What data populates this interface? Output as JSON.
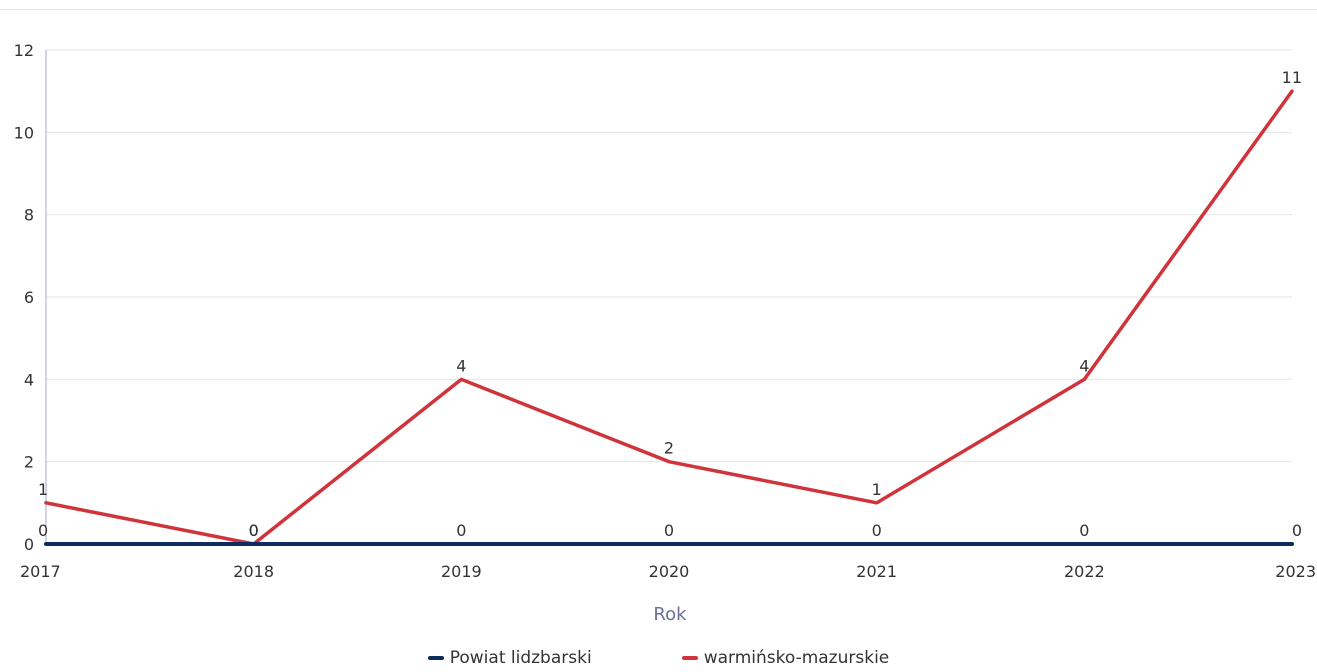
{
  "chart_data": {
    "type": "line",
    "title": "",
    "xlabel": "Rok",
    "ylabel": "",
    "categories": [
      "2017",
      "2018",
      "2019",
      "2020",
      "2021",
      "2022",
      "2023"
    ],
    "yticks": [
      "0",
      "2",
      "4",
      "6",
      "8",
      "10",
      "12"
    ],
    "ylim": [
      0,
      12
    ],
    "grid": true,
    "legend_position": "bottom",
    "series": [
      {
        "name": "Powiat lidzbarski",
        "color": "#0e2d5e",
        "values": [
          0,
          0,
          0,
          0,
          0,
          0,
          0
        ]
      },
      {
        "name": "warmińsko-mazurskie",
        "color": "#d0343a",
        "values": [
          1,
          0,
          4,
          2,
          1,
          4,
          11
        ]
      }
    ]
  }
}
